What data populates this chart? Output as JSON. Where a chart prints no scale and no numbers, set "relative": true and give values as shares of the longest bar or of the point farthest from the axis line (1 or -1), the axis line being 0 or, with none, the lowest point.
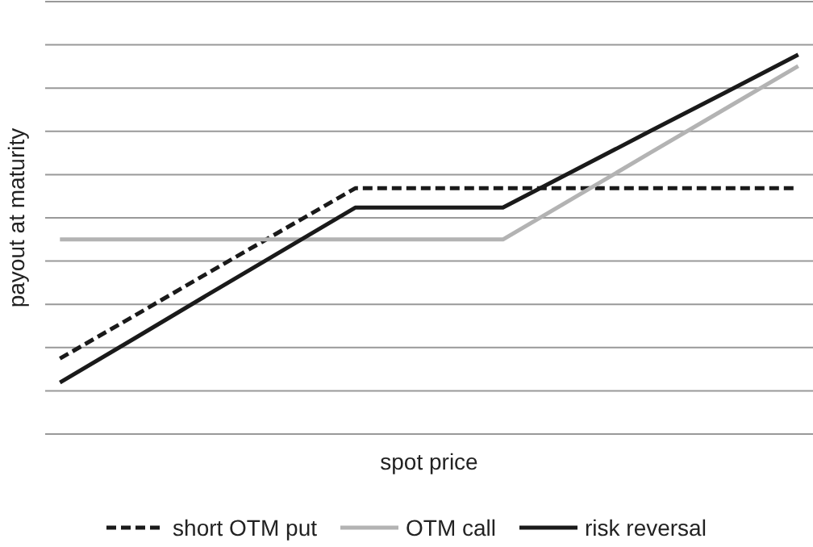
{
  "chart_data": {
    "type": "line",
    "xlabel": "spot price",
    "ylabel": "payout at maturity",
    "relative": true,
    "grid": "y",
    "legend": "bottom",
    "marker": "none",
    "categories": [
      null,
      null,
      null,
      null,
      null,
      null,
      null,
      null,
      null,
      null,
      null
    ],
    "series": [
      {
        "name": "short OTM put",
        "color": "#1a1a1a",
        "line_style": "dashed",
        "values": [
          0.199,
          0.311,
          0.424,
          0.536,
          0.648,
          0.648,
          0.648,
          0.648,
          0.648,
          0.648,
          0.648
        ]
      },
      {
        "name": "OTM call",
        "color": "#b3b3b3",
        "line_style": "solid",
        "values": [
          0.513,
          0.513,
          0.513,
          0.513,
          0.513,
          0.513,
          0.513,
          0.627,
          0.742,
          0.856,
          0.97
        ]
      },
      {
        "name": "risk reversal",
        "color": "#1a1a1a",
        "line_style": "solid",
        "values": [
          0.136,
          0.251,
          0.367,
          0.482,
          0.597,
          0.597,
          0.597,
          0.698,
          0.799,
          0.899,
          1.0
        ]
      }
    ]
  }
}
